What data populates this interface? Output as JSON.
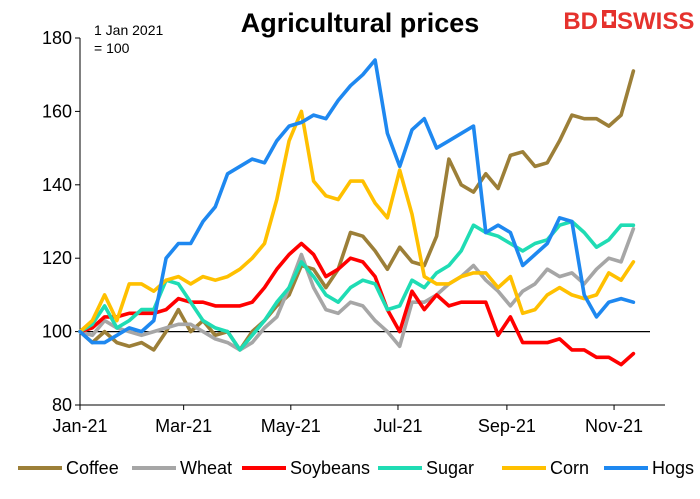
{
  "chart_data": {
    "type": "line",
    "title": "Agricultural prices",
    "note_lines": [
      "1 Jan 2021",
      "= 100"
    ],
    "ylim": [
      80,
      180
    ],
    "yticks": [
      80,
      100,
      120,
      140,
      160,
      180
    ],
    "reference_line": 100,
    "x_dates": [
      "2021-01-01",
      "2021-01-08",
      "2021-01-15",
      "2021-01-22",
      "2021-01-29",
      "2021-02-05",
      "2021-02-12",
      "2021-02-19",
      "2021-02-26",
      "2021-03-05",
      "2021-03-12",
      "2021-03-19",
      "2021-03-26",
      "2021-04-02",
      "2021-04-09",
      "2021-04-16",
      "2021-04-23",
      "2021-04-30",
      "2021-05-07",
      "2021-05-14",
      "2021-05-21",
      "2021-05-28",
      "2021-06-04",
      "2021-06-11",
      "2021-06-18",
      "2021-06-25",
      "2021-07-02",
      "2021-07-09",
      "2021-07-16",
      "2021-07-23",
      "2021-07-30",
      "2021-08-06",
      "2021-08-13",
      "2021-08-20",
      "2021-08-27",
      "2021-09-03",
      "2021-09-10",
      "2021-09-17",
      "2021-09-24",
      "2021-10-01",
      "2021-10-08",
      "2021-10-15",
      "2021-10-22",
      "2021-10-29",
      "2021-11-05",
      "2021-11-12"
    ],
    "x_tick_dates": [
      "2021-01-01",
      "2021-03-01",
      "2021-05-01",
      "2021-07-01",
      "2021-09-01",
      "2021-11-01"
    ],
    "x_tick_labels": [
      "Jan-21",
      "Mar-21",
      "May-21",
      "Jul-21",
      "Sep-21",
      "Nov-21"
    ],
    "x_range": [
      "2021-01-01",
      "2021-11-30"
    ],
    "series": [
      {
        "name": "Coffee",
        "color": "#9c7f38",
        "values": [
          100,
          97,
          100,
          97,
          96,
          97,
          95,
          100,
          106,
          100,
          103,
          99,
          100,
          95,
          100,
          103,
          107,
          110,
          118,
          117,
          112,
          117,
          127,
          126,
          122,
          117,
          123,
          119,
          118,
          126,
          147,
          140,
          138,
          143,
          139,
          148,
          149,
          145,
          146,
          152,
          159,
          158,
          158,
          156,
          159,
          171
        ]
      },
      {
        "name": "Wheat",
        "color": "#a6a6a6",
        "values": [
          100,
          99,
          103,
          101,
          100,
          99,
          100,
          101,
          102,
          102,
          100,
          98,
          97,
          95,
          97,
          101,
          104,
          112,
          121,
          112,
          106,
          105,
          108,
          107,
          103,
          100,
          96,
          108,
          108,
          110,
          113,
          115,
          118,
          114,
          111,
          107,
          111,
          113,
          117,
          115,
          116,
          113,
          117,
          120,
          119,
          128
        ]
      },
      {
        "name": "Soybeans",
        "color": "#ff0000",
        "values": [
          100,
          101,
          104,
          104,
          105,
          105,
          105,
          106,
          109,
          108,
          108,
          107,
          107,
          107,
          108,
          112,
          117,
          121,
          124,
          121,
          115,
          117,
          120,
          119,
          115,
          106,
          100,
          111,
          106,
          110,
          107,
          108,
          108,
          108,
          99,
          104,
          97,
          97,
          97,
          98,
          95,
          95,
          93,
          93,
          91,
          94
        ]
      },
      {
        "name": "Sugar",
        "color": "#1fdcb4",
        "values": [
          100,
          102,
          107,
          101,
          103,
          106,
          106,
          114,
          113,
          108,
          103,
          101,
          100,
          95,
          99,
          103,
          108,
          112,
          119,
          115,
          110,
          108,
          112,
          114,
          113,
          106,
          107,
          114,
          112,
          116,
          118,
          122,
          129,
          127,
          126,
          124,
          122,
          124,
          125,
          129,
          130,
          127,
          123,
          125,
          129,
          129
        ]
      },
      {
        "name": "Corn",
        "color": "#ffc000",
        "values": [
          100,
          103,
          110,
          103,
          113,
          113,
          111,
          114,
          115,
          113,
          115,
          114,
          115,
          117,
          120,
          124,
          136,
          152,
          160,
          141,
          137,
          136,
          141,
          141,
          135,
          131,
          144,
          132,
          115,
          113,
          113,
          115,
          116,
          116,
          112,
          115,
          105,
          106,
          110,
          112,
          110,
          109,
          110,
          116,
          114,
          119
        ]
      },
      {
        "name": "Hogs",
        "color": "#1e88f0",
        "values": [
          100,
          97,
          97,
          99,
          101,
          100,
          103,
          120,
          124,
          124,
          130,
          134,
          143,
          145,
          147,
          146,
          152,
          156,
          157,
          159,
          158,
          163,
          167,
          170,
          174,
          154,
          145,
          155,
          158,
          150,
          152,
          154,
          156,
          127,
          129,
          127,
          118,
          121,
          124,
          131,
          130,
          110,
          104,
          108,
          109,
          108
        ]
      }
    ]
  },
  "logo": {
    "text_bd": "BD",
    "text_swiss": "SWISS"
  }
}
